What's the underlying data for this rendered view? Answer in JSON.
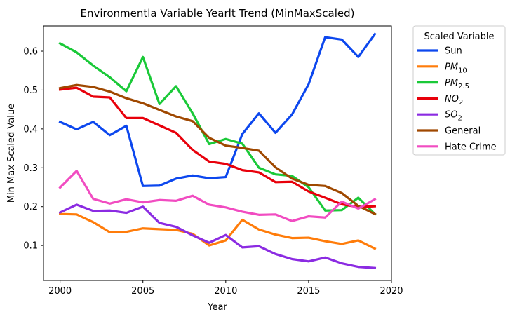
{
  "chart_data": {
    "type": "line",
    "title": "Environmentla Variable Yearlt Trend (MinMaxScaled)",
    "xlabel": "Year",
    "ylabel": "Min Max Scaled Value",
    "xlim": [
      1999,
      2020
    ],
    "ylim": [
      0.01,
      0.665
    ],
    "x_ticks": [
      2000,
      2005,
      2010,
      2015,
      2020
    ],
    "y_ticks": [
      0.1,
      0.2,
      0.3,
      0.4,
      0.5,
      0.6
    ],
    "y_tick_labels": [
      "0.1",
      "0.2",
      "0.3",
      "0.4",
      "0.5",
      "0.6"
    ],
    "grid": false,
    "legend": {
      "title": "Scaled Variable",
      "placement": "outside-right"
    },
    "x": [
      2000,
      2001,
      2002,
      2003,
      2004,
      2005,
      2006,
      2007,
      2008,
      2009,
      2010,
      2011,
      2012,
      2013,
      2014,
      2015,
      2016,
      2017,
      2018,
      2019
    ],
    "series": [
      {
        "name": "Sun",
        "label_base": "Sun",
        "label_sub": "",
        "color": "#0c47ee",
        "values": [
          0.418,
          0.399,
          0.418,
          0.384,
          0.408,
          0.253,
          0.254,
          0.272,
          0.28,
          0.273,
          0.276,
          0.387,
          0.44,
          0.39,
          0.437,
          0.515,
          0.636,
          0.63,
          0.585,
          0.644
        ]
      },
      {
        "name": "PM10",
        "label_base": "PM",
        "label_sub": "10",
        "color": "#ff7c0a",
        "values": [
          0.181,
          0.18,
          0.16,
          0.134,
          0.135,
          0.144,
          0.142,
          0.14,
          0.13,
          0.1,
          0.113,
          0.166,
          0.141,
          0.128,
          0.119,
          0.12,
          0.111,
          0.104,
          0.113,
          0.092
        ]
      },
      {
        "name": "PM2.5",
        "label_base": "PM",
        "label_sub": "2.5",
        "color": "#1ac938",
        "values": [
          0.62,
          0.597,
          0.563,
          0.533,
          0.497,
          0.585,
          0.464,
          0.51,
          0.44,
          0.361,
          0.374,
          0.362,
          0.3,
          0.283,
          0.279,
          0.25,
          0.19,
          0.191,
          0.223,
          0.181
        ]
      },
      {
        "name": "NO2",
        "label_base": "NO",
        "label_sub": "2",
        "color": "#e8000b",
        "values": [
          0.501,
          0.506,
          0.483,
          0.481,
          0.428,
          0.428,
          0.409,
          0.39,
          0.346,
          0.316,
          0.31,
          0.294,
          0.288,
          0.263,
          0.264,
          0.239,
          0.223,
          0.206,
          0.199,
          0.201
        ]
      },
      {
        "name": "SO2",
        "label_base": "SO",
        "label_sub": "2",
        "color": "#8b2be2",
        "values": [
          0.185,
          0.205,
          0.189,
          0.19,
          0.184,
          0.2,
          0.158,
          0.148,
          0.126,
          0.107,
          0.127,
          0.095,
          0.098,
          0.078,
          0.065,
          0.059,
          0.069,
          0.054,
          0.045,
          0.042
        ]
      },
      {
        "name": "General",
        "label_base": "General",
        "label_sub": "",
        "color": "#9f4800",
        "values": [
          0.505,
          0.513,
          0.508,
          0.496,
          0.479,
          0.466,
          0.449,
          0.432,
          0.42,
          0.377,
          0.357,
          0.351,
          0.344,
          0.301,
          0.272,
          0.256,
          0.253,
          0.235,
          0.202,
          0.181
        ]
      },
      {
        "name": "Hate Crime",
        "label_base": "Hate Crime",
        "label_sub": "",
        "color": "#f14cc1",
        "values": [
          0.249,
          0.292,
          0.22,
          0.208,
          0.219,
          0.211,
          0.217,
          0.215,
          0.228,
          0.205,
          0.198,
          0.187,
          0.179,
          0.18,
          0.163,
          0.175,
          0.172,
          0.213,
          0.195,
          0.219
        ]
      }
    ]
  }
}
